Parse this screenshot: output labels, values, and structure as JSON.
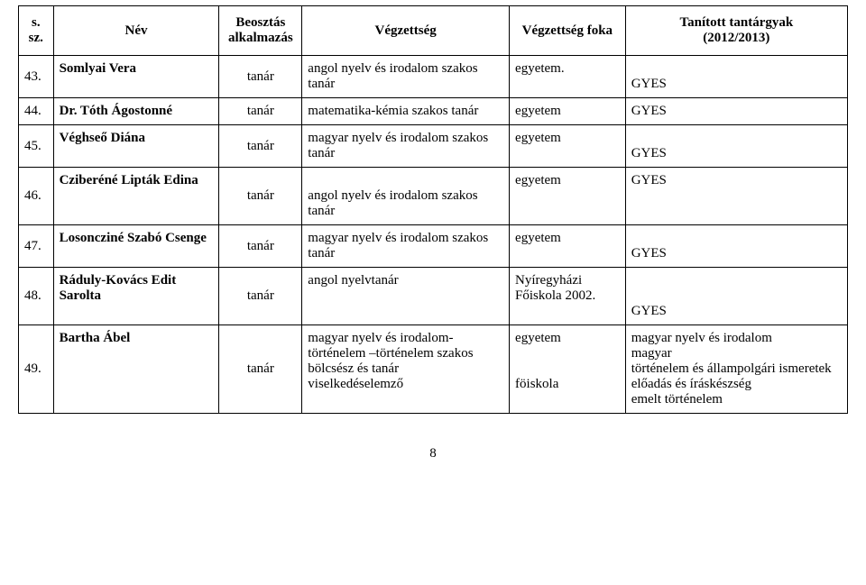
{
  "headers": {
    "c0_l1": "s.",
    "c0_l2": "sz.",
    "c1": "Név",
    "c2_l1": "Beosztás",
    "c2_l2": "alkalmazás",
    "c3": "Végzettség",
    "c4": "Végzettség foka",
    "c5_l1": "Tanított tantárgyak",
    "c5_l2": "(2012/2013)"
  },
  "rows": [
    {
      "n": "43.",
      "name": "Somlyai Vera",
      "pos": "tanár",
      "qual": "angol nyelv és irodalom szakos tanár",
      "deg": "egyetem.",
      "subj": "GYES"
    },
    {
      "n": "44.",
      "name": "Dr. Tóth Ágostonné",
      "pos": "tanár",
      "qual": "matematika-kémia szakos tanár",
      "deg": "egyetem",
      "subj": "GYES"
    },
    {
      "n": "45.",
      "name": "Véghseő Diána",
      "pos": "tanár",
      "qual": "magyar nyelv és irodalom szakos tanár",
      "deg": "egyetem",
      "subj": "GYES"
    },
    {
      "n": "46.",
      "name": "Cziberéné Lipták Edina",
      "pos": "tanár",
      "qual": "angol nyelv és irodalom szakos tanár",
      "deg": "egyetem",
      "subj": "GYES"
    },
    {
      "n": "47.",
      "name": "Losoncziné Szabó Csenge",
      "pos": "tanár",
      "qual": "magyar nyelv és irodalom szakos tanár",
      "deg": "egyetem",
      "subj": "GYES"
    },
    {
      "n": "48.",
      "name": "Ráduly-Kovács Edit Sarolta",
      "pos": "tanár",
      "qual": "angol nyelvtanár",
      "deg": "Nyíregyházi Főiskola 2002.",
      "subj": "GYES"
    },
    {
      "n": "49.",
      "name": "Bartha Ábel",
      "pos": "tanár",
      "qual_l1": "magyar nyelv és irodalom-történelem –történelem szakos bölcsész és tanár",
      "qual_l2": "viselkedéselemző",
      "deg_l1": "egyetem",
      "deg_l2": "föiskola",
      "subj_l1": "magyar nyelv és irodalom",
      "subj_l2": "magyar",
      "subj_l3": "történelem és állampolgári ismeretek",
      "subj_l4": "előadás és íráskészség",
      "subj_l5": "emelt történelem"
    }
  ],
  "page_number": "8",
  "style": {
    "font_family": "Times New Roman",
    "font_size_pt": 15,
    "text_color": "#000000",
    "background": "#ffffff",
    "border_color": "#000000",
    "col_widths_pct": [
      4.2,
      20,
      10,
      25,
      14,
      26.8
    ]
  }
}
